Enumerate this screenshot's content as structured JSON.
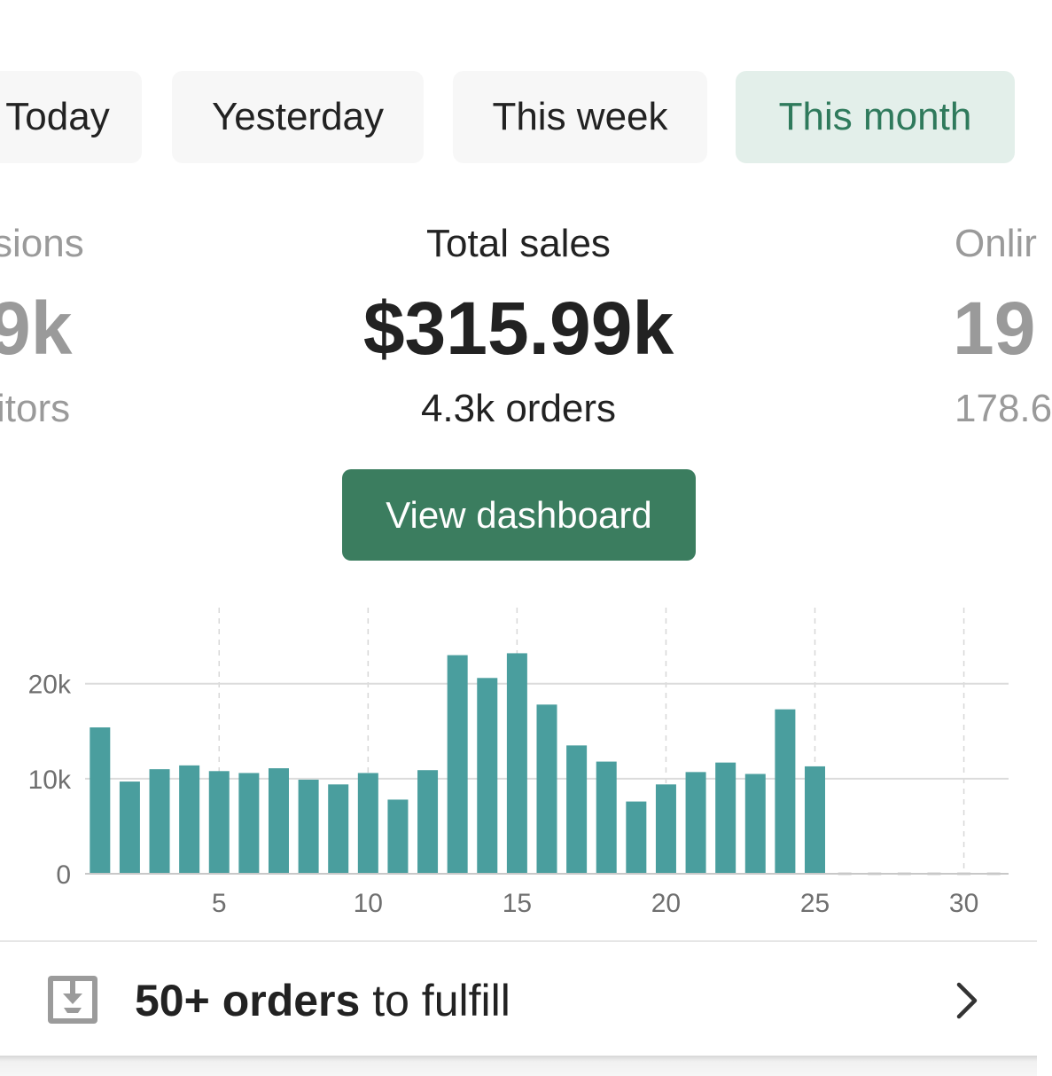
{
  "tabs": [
    {
      "label": "Today",
      "active": false
    },
    {
      "label": "Yesterday",
      "active": false
    },
    {
      "label": "This week",
      "active": false
    },
    {
      "label": "This month",
      "active": true
    }
  ],
  "metrics": {
    "left": {
      "label": "sions",
      "value": "9k",
      "sub": "itors"
    },
    "center": {
      "label": "Total sales",
      "value": "$315.99k",
      "sub": "4.3k orders"
    },
    "right": {
      "label": "Onlir",
      "value": "19",
      "sub": "178.6"
    }
  },
  "dashboard_button": {
    "label": "View dashboard"
  },
  "colors": {
    "accent": "#3b7d5f",
    "bar": "#4a9e9e",
    "active_tab_bg": "#e3efea",
    "active_tab_text": "#2f7a5c"
  },
  "chart_data": {
    "type": "bar",
    "x": [
      1,
      2,
      3,
      4,
      5,
      6,
      7,
      8,
      9,
      10,
      11,
      12,
      13,
      14,
      15,
      16,
      17,
      18,
      19,
      20,
      21,
      22,
      23,
      24,
      25,
      26,
      27,
      28,
      29,
      30,
      31
    ],
    "values": [
      15400,
      9700,
      11000,
      11400,
      10800,
      10600,
      11100,
      9900,
      9400,
      10600,
      7800,
      10900,
      23000,
      20600,
      23200,
      17800,
      13500,
      11800,
      7600,
      9400,
      10700,
      11700,
      10500,
      17300,
      11300,
      0,
      0,
      0,
      0,
      0,
      0
    ],
    "xticks": [
      "5",
      "10",
      "15",
      "20",
      "25",
      "30"
    ],
    "xtick_values": [
      5,
      10,
      15,
      20,
      25,
      30
    ],
    "yticks": [
      "0",
      "10k",
      "20k"
    ],
    "ytick_values": [
      0,
      10000,
      20000
    ],
    "ylim": [
      0,
      28000
    ],
    "xlim": [
      0.5,
      31.5
    ],
    "grid": true
  },
  "fulfill": {
    "bold_text": "50+ orders",
    "rest_text": " to fulfill"
  },
  "icons": {
    "fulfill": "inbox-download-icon",
    "chevron": "chevron-right-icon"
  }
}
